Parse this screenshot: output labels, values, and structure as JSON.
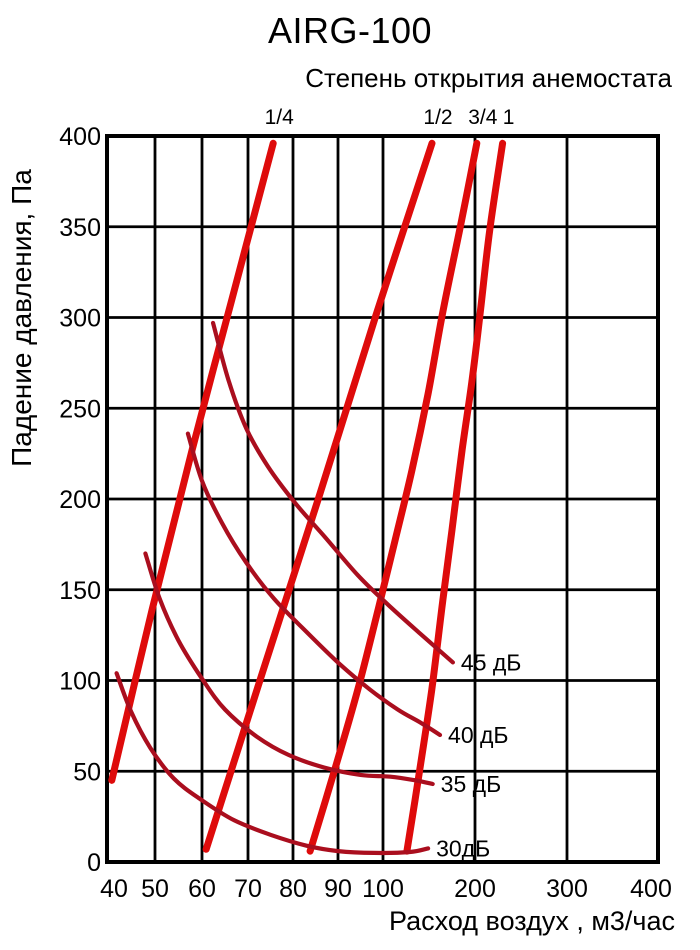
{
  "title": "AIRG-100",
  "subtitle": "Степень открытия анемостата",
  "colors": {
    "background": "#ffffff",
    "grid": "#000000",
    "text": "#000000",
    "opening_line": "#de0b0b",
    "noise_line": "#aa0e1e"
  },
  "chart_data": {
    "type": "line",
    "title": "AIRG-100",
    "subtitle": "Степень открытия анемостата",
    "xlabel": "Расход воздух , м3/час",
    "ylabel": "Падение давления, Па",
    "x_scale": "segmented: 40-100 step 10, then 100-400 step 100 (compressed)",
    "x_ticks": [
      40,
      50,
      60,
      70,
      80,
      90,
      100,
      200,
      300,
      400
    ],
    "y_ticks": [
      400,
      350,
      300,
      250,
      200,
      150,
      100,
      50,
      0
    ],
    "xlim": [
      40,
      400
    ],
    "ylim": [
      0,
      400
    ],
    "grid": true,
    "legend_position": "labels-on-lines",
    "series": [
      {
        "name": "open-1-4",
        "label": "1/4",
        "group": "opening",
        "units": "м3/час, Па",
        "points": [
          [
            41,
            45
          ],
          [
            49.4,
            139
          ],
          [
            57.9,
            227
          ],
          [
            66.5,
            310
          ],
          [
            75.6,
            396
          ]
        ]
      },
      {
        "name": "open-1-2",
        "label": "1/2",
        "group": "opening",
        "units": "м3/час, Па",
        "points": [
          [
            60.9,
            7
          ],
          [
            73.3,
            105
          ],
          [
            86,
            203
          ],
          [
            98.4,
            301
          ],
          [
            153.3,
            396
          ]
        ]
      },
      {
        "name": "open-3-4",
        "label": "3/4",
        "group": "opening",
        "units": "м3/час, Па",
        "points": [
          [
            83.8,
            6
          ],
          [
            89.3,
            51
          ],
          [
            94.4,
            95
          ],
          [
            98.9,
            139
          ],
          [
            113,
            177
          ],
          [
            131.5,
            216
          ],
          [
            149,
            258
          ],
          [
            165,
            303
          ],
          [
            184,
            350
          ],
          [
            202,
            396
          ]
        ]
      },
      {
        "name": "open-1",
        "label": "1",
        "group": "opening",
        "units": "м3/час, Па",
        "points": [
          [
            126,
            6
          ],
          [
            140,
            51
          ],
          [
            153,
            95
          ],
          [
            165,
            144
          ],
          [
            175,
            183
          ],
          [
            186,
            227
          ],
          [
            197,
            266
          ],
          [
            206,
            304
          ],
          [
            216,
            348
          ],
          [
            230,
            396
          ]
        ]
      },
      {
        "name": "noise-45",
        "label": "45 дБ",
        "group": "noise",
        "units": "м3/час, Па",
        "points": [
          [
            62.4,
            297
          ],
          [
            65.7,
            266
          ],
          [
            69.6,
            239
          ],
          [
            74.4,
            218
          ],
          [
            80.4,
            198
          ],
          [
            87.1,
            179
          ],
          [
            94.4,
            158
          ],
          [
            105,
            142
          ],
          [
            140,
            126
          ],
          [
            176,
            110
          ]
        ]
      },
      {
        "name": "noise-40",
        "label": "40 дБ",
        "group": "noise",
        "units": "м3/час, Па",
        "points": [
          [
            57,
            236
          ],
          [
            60,
            210
          ],
          [
            64.3,
            187
          ],
          [
            69.6,
            165
          ],
          [
            75.8,
            145
          ],
          [
            82.9,
            127
          ],
          [
            90.4,
            109
          ],
          [
            97.1,
            95
          ],
          [
            116,
            84
          ],
          [
            140,
            77
          ],
          [
            162,
            70
          ]
        ]
      },
      {
        "name": "noise-35",
        "label": "35 дБ",
        "group": "noise",
        "units": "м3/час, Па",
        "points": [
          [
            48,
            170
          ],
          [
            51,
            145
          ],
          [
            55,
            122
          ],
          [
            60,
            101
          ],
          [
            65,
            84
          ],
          [
            72,
            69
          ],
          [
            79,
            59
          ],
          [
            87,
            52
          ],
          [
            95,
            48
          ],
          [
            108,
            47
          ],
          [
            135,
            45
          ],
          [
            154,
            43
          ]
        ]
      },
      {
        "name": "noise-30",
        "label": "30дБ",
        "group": "noise",
        "units": "м3/час, Па",
        "points": [
          [
            42,
            104
          ],
          [
            45,
            83
          ],
          [
            49,
            63
          ],
          [
            54,
            46
          ],
          [
            60,
            34
          ],
          [
            67,
            23
          ],
          [
            75,
            15
          ],
          [
            83,
            9
          ],
          [
            90,
            6
          ],
          [
            98,
            5
          ],
          [
            129,
            5.5
          ],
          [
            149,
            7.5
          ]
        ]
      }
    ]
  }
}
